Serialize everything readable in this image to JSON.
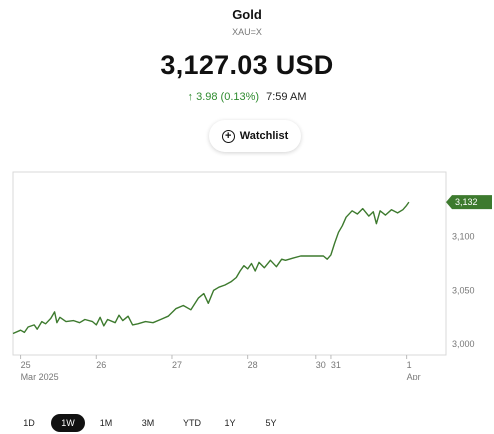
{
  "instrument": {
    "name": "Gold",
    "ticker": "XAU=X",
    "price": "3,127.03 USD",
    "change_arrow": "↑",
    "change": "3.98 (0.13%)",
    "time": "7:59 AM"
  },
  "watchlist": {
    "label": "Watchlist",
    "icon": "plus-circle-icon"
  },
  "colors": {
    "line": "#3d7a2e",
    "price_tag": "#3d7a2e",
    "positive": "#2e8b2e"
  },
  "chart_data": {
    "type": "line",
    "title": "",
    "xlabel": "",
    "ylabel": "",
    "ylim": [
      2990,
      3160
    ],
    "yticks": [
      "3,000",
      "3,050",
      "3,100"
    ],
    "last_value_label": "3,132",
    "x_ticks": [
      {
        "label": "25",
        "sublabel": "Mar 2025",
        "x": 0
      },
      {
        "label": "26",
        "sublabel": "",
        "x": 1
      },
      {
        "label": "27",
        "sublabel": "",
        "x": 2
      },
      {
        "label": "28",
        "sublabel": "",
        "x": 3
      },
      {
        "label": "30",
        "sublabel": "",
        "x": 3.9
      },
      {
        "label": "31",
        "sublabel": "",
        "x": 4.1
      },
      {
        "label": "1",
        "sublabel": "Apr",
        "x": 5.1
      }
    ],
    "xlim": [
      -0.1,
      5.62
    ],
    "series": [
      {
        "values": [
          [
            -0.1,
            3010
          ],
          [
            0.0,
            3013
          ],
          [
            0.05,
            3011
          ],
          [
            0.1,
            3016
          ],
          [
            0.18,
            3018
          ],
          [
            0.22,
            3014
          ],
          [
            0.28,
            3021
          ],
          [
            0.33,
            3019
          ],
          [
            0.4,
            3024
          ],
          [
            0.45,
            3030
          ],
          [
            0.48,
            3020
          ],
          [
            0.52,
            3025
          ],
          [
            0.6,
            3021
          ],
          [
            0.7,
            3022
          ],
          [
            0.78,
            3020
          ],
          [
            0.85,
            3023
          ],
          [
            0.95,
            3021
          ],
          [
            1.0,
            3018
          ],
          [
            1.05,
            3025
          ],
          [
            1.1,
            3017
          ],
          [
            1.15,
            3023
          ],
          [
            1.25,
            3020
          ],
          [
            1.3,
            3027
          ],
          [
            1.35,
            3022
          ],
          [
            1.42,
            3026
          ],
          [
            1.48,
            3018
          ],
          [
            1.55,
            3019
          ],
          [
            1.65,
            3021
          ],
          [
            1.75,
            3020
          ],
          [
            1.85,
            3023
          ],
          [
            1.95,
            3026
          ],
          [
            2.05,
            3033
          ],
          [
            2.15,
            3036
          ],
          [
            2.25,
            3032
          ],
          [
            2.35,
            3043
          ],
          [
            2.42,
            3047
          ],
          [
            2.48,
            3038
          ],
          [
            2.55,
            3050
          ],
          [
            2.62,
            3053
          ],
          [
            2.7,
            3055
          ],
          [
            2.78,
            3058
          ],
          [
            2.85,
            3062
          ],
          [
            2.9,
            3068
          ],
          [
            2.95,
            3073
          ],
          [
            3.0,
            3070
          ],
          [
            3.05,
            3075
          ],
          [
            3.1,
            3068
          ],
          [
            3.15,
            3076
          ],
          [
            3.22,
            3071
          ],
          [
            3.3,
            3078
          ],
          [
            3.38,
            3072
          ],
          [
            3.45,
            3079
          ],
          [
            3.5,
            3078
          ],
          [
            3.6,
            3080
          ],
          [
            3.7,
            3082
          ],
          [
            3.8,
            3082
          ],
          [
            3.9,
            3082
          ],
          [
            4.0,
            3082
          ],
          [
            4.05,
            3079
          ],
          [
            4.1,
            3083
          ],
          [
            4.15,
            3094
          ],
          [
            4.2,
            3104
          ],
          [
            4.25,
            3110
          ],
          [
            4.3,
            3118
          ],
          [
            4.38,
            3124
          ],
          [
            4.45,
            3121
          ],
          [
            4.52,
            3126
          ],
          [
            4.6,
            3119
          ],
          [
            4.66,
            3123
          ],
          [
            4.7,
            3112
          ],
          [
            4.75,
            3124
          ],
          [
            4.82,
            3120
          ],
          [
            4.9,
            3125
          ],
          [
            4.98,
            3122
          ],
          [
            5.05,
            3125
          ],
          [
            5.1,
            3129
          ],
          [
            5.13,
            3132
          ]
        ]
      }
    ]
  },
  "ranges": [
    {
      "label": "1D",
      "active": false
    },
    {
      "label": "1W",
      "active": true
    },
    {
      "label": "1M",
      "active": false
    },
    {
      "label": "3M",
      "active": false
    },
    {
      "label": "YTD",
      "active": false
    },
    {
      "label": "1Y",
      "active": false
    },
    {
      "label": "5Y",
      "active": false
    }
  ]
}
